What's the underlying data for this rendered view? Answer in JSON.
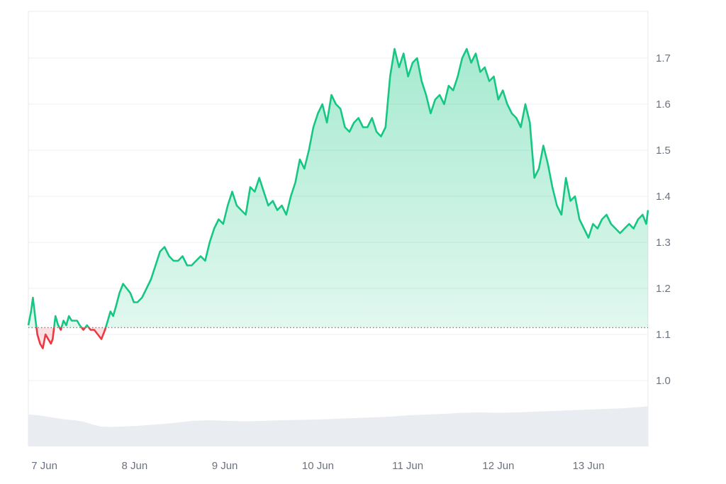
{
  "chart_data": {
    "type": "area",
    "title": "",
    "xlabel": "",
    "ylabel": "",
    "x_ticks": [
      "7 Jun",
      "8 Jun",
      "9 Jun",
      "10 Jun",
      "11 Jun",
      "12 Jun",
      "13 Jun"
    ],
    "y_ticks": [
      "1.0",
      "1.1",
      "1.2",
      "1.3",
      "1.4",
      "1.5",
      "1.6",
      "1.7"
    ],
    "y_tick_values": [
      1.0,
      1.1,
      1.2,
      1.3,
      1.4,
      1.5,
      1.6,
      1.7
    ],
    "xlim_days": [
      6.99,
      13.86
    ],
    "ylim": [
      1.0,
      1.8
    ],
    "baseline": 1.115,
    "grid": "horizontal",
    "legend": "none",
    "colors": {
      "up": "#16c784",
      "down": "#ea3943",
      "volume": "#e9ecf0",
      "grid": "#eceff3"
    },
    "series": [
      {
        "x_days": [
          6.99,
          7.02,
          7.04,
          7.07,
          7.09,
          7.12,
          7.15,
          7.18,
          7.21,
          7.24,
          7.26,
          7.29,
          7.32,
          7.35,
          7.38,
          7.41,
          7.44,
          7.47,
          7.5,
          7.53,
          7.56,
          7.6,
          7.64,
          7.68,
          7.72,
          7.76,
          7.8,
          7.84,
          7.87,
          7.9,
          7.93,
          7.96,
          8.0,
          8.04,
          8.08,
          8.12,
          8.16,
          8.2,
          8.25,
          8.3,
          8.35,
          8.4,
          8.45,
          8.5,
          8.55,
          8.6,
          8.65,
          8.7,
          8.75,
          8.8,
          8.85,
          8.9,
          8.95,
          9.0,
          9.05,
          9.1,
          9.15,
          9.2,
          9.25,
          9.3,
          9.35,
          9.4,
          9.45,
          9.5,
          9.55,
          9.6,
          9.65,
          9.7,
          9.75,
          9.8,
          9.85,
          9.9,
          9.95,
          10.0,
          10.05,
          10.1,
          10.15,
          10.2,
          10.25,
          10.3,
          10.35,
          10.4,
          10.45,
          10.5,
          10.55,
          10.6,
          10.65,
          10.7,
          10.75,
          10.8,
          10.85,
          10.9,
          10.95,
          11.0,
          11.05,
          11.1,
          11.15,
          11.2,
          11.25,
          11.3,
          11.35,
          11.4,
          11.45,
          11.5,
          11.55,
          11.6,
          11.65,
          11.7,
          11.75,
          11.8,
          11.85,
          11.9,
          11.95,
          12.0,
          12.05,
          12.1,
          12.15,
          12.2,
          12.25,
          12.3,
          12.35,
          12.4,
          12.45,
          12.5,
          12.55,
          12.6,
          12.65,
          12.7,
          12.75,
          12.8,
          12.85,
          12.9,
          12.95,
          13.0,
          13.05,
          13.1,
          13.15,
          13.2,
          13.25,
          13.3,
          13.35,
          13.4,
          13.45,
          13.5,
          13.55,
          13.6,
          13.65,
          13.7,
          13.75,
          13.8,
          13.84,
          13.86
        ],
        "values": [
          1.12,
          1.15,
          1.18,
          1.13,
          1.1,
          1.08,
          1.07,
          1.1,
          1.09,
          1.08,
          1.09,
          1.14,
          1.12,
          1.11,
          1.13,
          1.12,
          1.14,
          1.13,
          1.13,
          1.13,
          1.12,
          1.11,
          1.12,
          1.11,
          1.11,
          1.1,
          1.09,
          1.11,
          1.13,
          1.15,
          1.14,
          1.16,
          1.19,
          1.21,
          1.2,
          1.19,
          1.17,
          1.17,
          1.18,
          1.2,
          1.22,
          1.25,
          1.28,
          1.29,
          1.27,
          1.26,
          1.26,
          1.27,
          1.25,
          1.25,
          1.26,
          1.27,
          1.26,
          1.3,
          1.33,
          1.35,
          1.34,
          1.38,
          1.41,
          1.38,
          1.37,
          1.36,
          1.42,
          1.41,
          1.44,
          1.41,
          1.38,
          1.39,
          1.37,
          1.38,
          1.36,
          1.4,
          1.43,
          1.48,
          1.46,
          1.5,
          1.55,
          1.58,
          1.6,
          1.56,
          1.62,
          1.6,
          1.59,
          1.55,
          1.54,
          1.56,
          1.57,
          1.55,
          1.55,
          1.57,
          1.54,
          1.53,
          1.55,
          1.66,
          1.72,
          1.68,
          1.71,
          1.66,
          1.69,
          1.7,
          1.65,
          1.62,
          1.58,
          1.61,
          1.62,
          1.6,
          1.64,
          1.63,
          1.66,
          1.7,
          1.72,
          1.69,
          1.71,
          1.67,
          1.68,
          1.65,
          1.66,
          1.61,
          1.63,
          1.6,
          1.58,
          1.57,
          1.55,
          1.6,
          1.56,
          1.44,
          1.46,
          1.51,
          1.47,
          1.42,
          1.38,
          1.36,
          1.44,
          1.39,
          1.4,
          1.35,
          1.33,
          1.31,
          1.34,
          1.33,
          1.35,
          1.36,
          1.34,
          1.33,
          1.32,
          1.33,
          1.34,
          1.33,
          1.35,
          1.36,
          1.34,
          1.37
        ]
      }
    ],
    "volume_series": {
      "x_days": [
        6.99,
        7.1,
        7.2,
        7.3,
        7.4,
        7.5,
        7.6,
        7.7,
        7.8,
        7.9,
        8.0,
        8.2,
        8.4,
        8.6,
        8.8,
        9.0,
        9.2,
        9.4,
        9.6,
        9.8,
        10.0,
        10.2,
        10.4,
        10.6,
        10.8,
        11.0,
        11.2,
        11.4,
        11.6,
        11.8,
        12.0,
        12.2,
        12.4,
        12.6,
        12.8,
        13.0,
        13.2,
        13.4,
        13.6,
        13.8,
        13.86
      ],
      "values": [
        0.9,
        0.88,
        0.84,
        0.8,
        0.76,
        0.74,
        0.7,
        0.62,
        0.56,
        0.55,
        0.56,
        0.58,
        0.62,
        0.66,
        0.72,
        0.74,
        0.72,
        0.71,
        0.72,
        0.74,
        0.75,
        0.76,
        0.78,
        0.8,
        0.82,
        0.84,
        0.88,
        0.9,
        0.92,
        0.95,
        0.96,
        0.95,
        0.96,
        0.98,
        1.0,
        1.02,
        1.04,
        1.06,
        1.08,
        1.12,
        1.13
      ]
    }
  }
}
